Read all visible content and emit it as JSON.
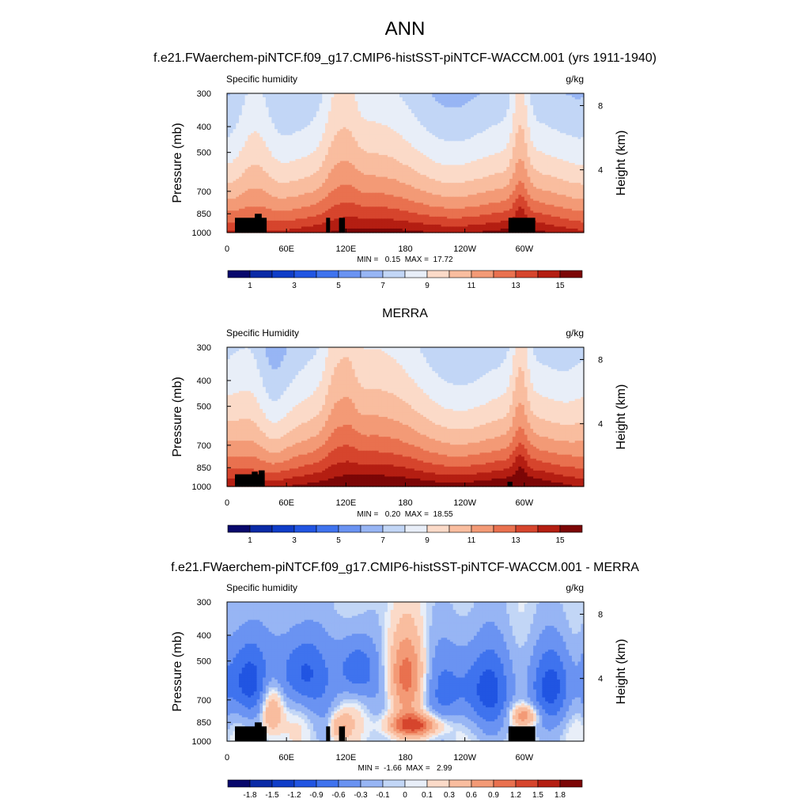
{
  "page": {
    "title": "ANN"
  },
  "chart_data": [
    {
      "type": "heatmap",
      "title": "f.e21.FWaerchem-piNTCF.f09_g17.CMIP6-histSST-piNTCF-WACCM.001 (yrs 1911-1940)",
      "left_string": "Specific humidity",
      "right_string": "g/kg",
      "ylabel": "Pressure (mb)",
      "y2label": "Height (km)",
      "yticks": [
        "300",
        "400",
        "500",
        "700",
        "850",
        "1000"
      ],
      "y2ticks": [
        "8",
        "4"
      ],
      "xticks": [
        "0",
        "60E",
        "120E",
        "180",
        "120W",
        "60W"
      ],
      "xlim": [
        0,
        360
      ],
      "ylim": [
        1000,
        300
      ],
      "stats": "MIN =   0.15  MAX =  17.72",
      "min": 0.15,
      "max": 17.72,
      "colorbar_labels": [
        "1",
        "3",
        "5",
        "7",
        "9",
        "11",
        "13",
        "15"
      ],
      "levels": [
        1,
        2,
        3,
        4,
        5,
        6,
        7,
        8,
        9,
        10,
        11,
        12,
        13,
        14,
        15
      ],
      "field": "humidity_model"
    },
    {
      "type": "heatmap",
      "title": "MERRA",
      "left_string": "Specific Humidity",
      "right_string": "g/kg",
      "ylabel": "Pressure (mb)",
      "y2label": "Height (km)",
      "yticks": [
        "300",
        "400",
        "500",
        "700",
        "850",
        "1000"
      ],
      "y2ticks": [
        "8",
        "4"
      ],
      "xticks": [
        "0",
        "60E",
        "120E",
        "180",
        "120W",
        "60W"
      ],
      "xlim": [
        0,
        360
      ],
      "ylim": [
        1000,
        300
      ],
      "stats": "MIN =   0.20  MAX =  18.55",
      "min": 0.2,
      "max": 18.55,
      "colorbar_labels": [
        "1",
        "3",
        "5",
        "7",
        "9",
        "11",
        "13",
        "15"
      ],
      "levels": [
        1,
        2,
        3,
        4,
        5,
        6,
        7,
        8,
        9,
        10,
        11,
        12,
        13,
        14,
        15
      ],
      "field": "humidity_obs"
    },
    {
      "type": "heatmap",
      "title": "f.e21.FWaerchem-piNTCF.f09_g17.CMIP6-histSST-piNTCF-WACCM.001 - MERRA",
      "left_string": "Specific humidity",
      "right_string": "g/kg",
      "ylabel": "Pressure (mb)",
      "y2label": "Height (km)",
      "yticks": [
        "300",
        "400",
        "500",
        "700",
        "850",
        "1000"
      ],
      "y2ticks": [
        "8",
        "4"
      ],
      "xticks": [
        "0",
        "60E",
        "120E",
        "180",
        "120W",
        "60W"
      ],
      "xlim": [
        0,
        360
      ],
      "ylim": [
        1000,
        300
      ],
      "stats": "MIN =  -1.66  MAX =   2.99",
      "min": -1.66,
      "max": 2.99,
      "colorbar_labels": [
        "-1.8",
        "-1.5",
        "-1.2",
        "-0.9",
        "-0.6",
        "-0.3",
        "-0.1",
        "0",
        "0.1",
        "0.3",
        "0.6",
        "0.9",
        "1.2",
        "1.5",
        "1.8"
      ],
      "levels": [
        -1.8,
        -1.5,
        -1.2,
        -0.9,
        -0.6,
        -0.3,
        -0.1,
        0,
        0.1,
        0.3,
        0.6,
        0.9,
        1.2,
        1.5,
        1.8
      ],
      "field": "difference"
    }
  ],
  "colormaps": {
    "sequential": [
      "#08086c",
      "#0a2aa6",
      "#0f3dc8",
      "#2155e2",
      "#3f73ee",
      "#6a93f2",
      "#97b5f4",
      "#c2d6f6",
      "#e8eef8",
      "#fbdac8",
      "#f9bd9f",
      "#f39a76",
      "#e9714f",
      "#d6452d",
      "#b41e12",
      "#7c0606"
    ],
    "diverging": [
      "#08086c",
      "#0a2aa6",
      "#0f3dc8",
      "#2155e2",
      "#3f73ee",
      "#6a93f2",
      "#97b5f4",
      "#c2d6f6",
      "#e8eef8",
      "#fbdac8",
      "#f9bd9f",
      "#f39a76",
      "#e9714f",
      "#d6452d",
      "#b41e12",
      "#7c0606"
    ]
  }
}
